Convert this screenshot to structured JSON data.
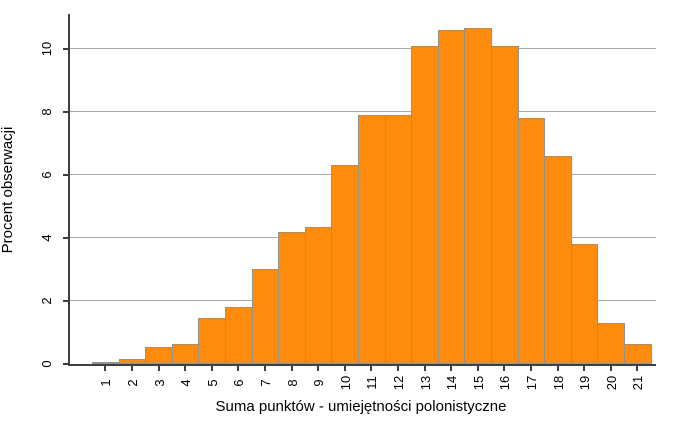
{
  "chart_data": {
    "type": "bar",
    "title": "",
    "xlabel": "Suma punktów - umiejętności polonistyczne",
    "ylabel": "Procent obserwacji",
    "categories": [
      1,
      2,
      3,
      4,
      5,
      6,
      7,
      8,
      9,
      10,
      11,
      12,
      13,
      14,
      15,
      16,
      17,
      18,
      19,
      20,
      21
    ],
    "values": [
      0.05,
      0.15,
      0.55,
      0.65,
      1.45,
      1.8,
      3.0,
      4.2,
      4.35,
      6.3,
      7.9,
      7.9,
      10.1,
      10.6,
      10.65,
      10.1,
      7.8,
      6.6,
      3.8,
      1.3,
      0.65
    ],
    "ylim": [
      0,
      11.1
    ],
    "yticks": [
      0,
      2,
      4,
      6,
      8,
      10
    ],
    "grid": "horizontal-only",
    "legend": "none",
    "bar_gap": 0
  },
  "colors": {
    "bar_fill": "#ff8b0d",
    "bar_border": "#96918b",
    "gridline": "#aaaaaa",
    "axis": "#3f3f3f",
    "text": "#000000",
    "background": "#ffffff"
  }
}
